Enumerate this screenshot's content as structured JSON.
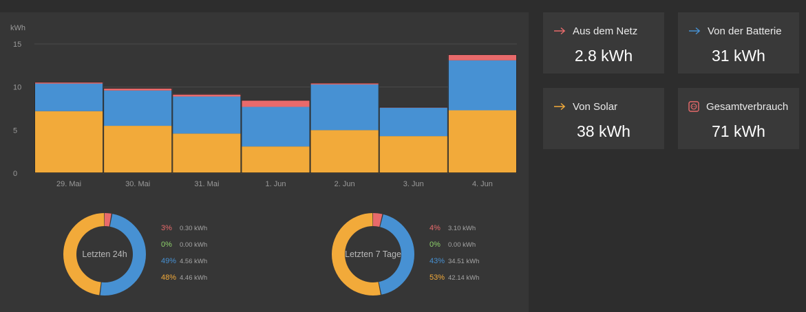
{
  "colors": {
    "grid": "#4b4b4b",
    "page_bg": "#2d2d2d",
    "panel_bg": "#363636",
    "card_bg": "#393939",
    "grid_netz": "#e86a6b",
    "battery": "#4791d3",
    "solar": "#f2aa3a",
    "green": "#8ed16b",
    "tick_text": "#9a9a9a"
  },
  "chart_data": {
    "type": "bar",
    "stacked": true,
    "ylabel": "kWh",
    "ylim": [
      0,
      15
    ],
    "yticks": [
      "0",
      "5",
      "10",
      "15"
    ],
    "grid": true,
    "categories": [
      "29. Mai",
      "30. Mai",
      "31. Mai",
      "1. Jun",
      "2. Jun",
      "3. Jun",
      "4. Jun"
    ],
    "series": [
      {
        "key": "solar",
        "color": "#f2aa3a",
        "values": [
          7.2,
          5.5,
          4.6,
          3.1,
          5.0,
          4.3,
          7.3
        ]
      },
      {
        "key": "battery",
        "color": "#4791d3",
        "values": [
          3.2,
          4.1,
          4.3,
          4.6,
          5.3,
          3.3,
          5.8
        ]
      },
      {
        "key": "grid",
        "color": "#e86a6b",
        "values": [
          0.2,
          0.3,
          0.3,
          0.8,
          0.2,
          0.1,
          0.7
        ]
      }
    ]
  },
  "cards": [
    {
      "label": "Aus dem Netz",
      "value": "2.8 kWh",
      "icon": "arrow-right-icon",
      "icon_color": "#e86a6b"
    },
    {
      "label": "Von der Batterie",
      "value": "31 kWh",
      "icon": "arrow-right-icon",
      "icon_color": "#4791d3"
    },
    {
      "label": "Von Solar",
      "value": "38 kWh",
      "icon": "arrow-right-icon",
      "icon_color": "#f2aa3a"
    },
    {
      "label": "Gesamtverbrauch",
      "value": "71 kWh",
      "icon": "power-socket-icon",
      "icon_color": "#e86a6b"
    }
  ],
  "donuts": [
    {
      "label": "Letzten 24h",
      "rows": [
        {
          "pct": "3%",
          "value": "0.30 kWh",
          "color": "#e86a6b",
          "fraction": 0.03
        },
        {
          "pct": "0%",
          "value": "0.00 kWh",
          "color": "#8ed16b",
          "fraction": 0.0
        },
        {
          "pct": "49%",
          "value": "4.56 kWh",
          "color": "#4791d3",
          "fraction": 0.49
        },
        {
          "pct": "48%",
          "value": "4.46 kWh",
          "color": "#f2aa3a",
          "fraction": 0.48
        }
      ]
    },
    {
      "label": "Letzten 7 Tage",
      "rows": [
        {
          "pct": "4%",
          "value": "3.10 kWh",
          "color": "#e86a6b",
          "fraction": 0.04
        },
        {
          "pct": "0%",
          "value": "0.00 kWh",
          "color": "#8ed16b",
          "fraction": 0.0
        },
        {
          "pct": "43%",
          "value": "34.51 kWh",
          "color": "#4791d3",
          "fraction": 0.43
        },
        {
          "pct": "53%",
          "value": "42.14 kWh",
          "color": "#f2aa3a",
          "fraction": 0.53
        }
      ]
    }
  ]
}
